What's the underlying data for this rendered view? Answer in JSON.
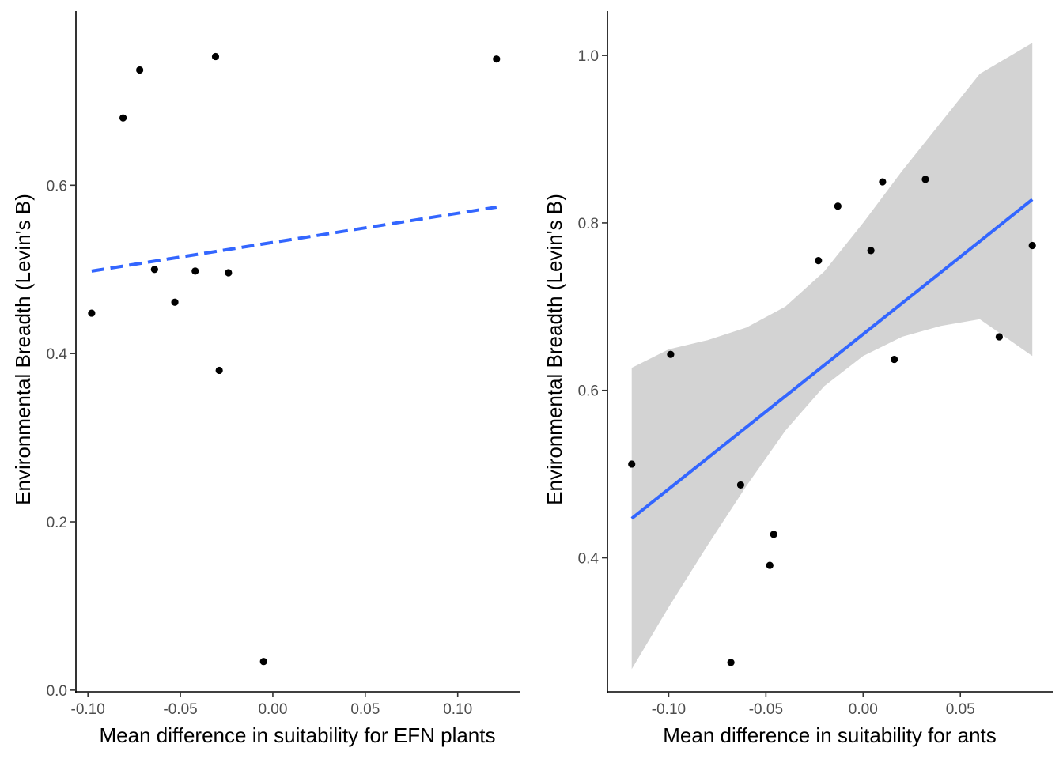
{
  "colors": {
    "point": "#000000",
    "fit_line": "#3366FF",
    "ribbon": "#D3D3D3",
    "axis": "#000000",
    "tick_label": "#4d4d4d"
  },
  "chart_data": [
    {
      "type": "scatter",
      "title": "",
      "xlabel": "Mean difference in suitability for EFN plants",
      "ylabel": "Environmental Breadth (Levin's B)",
      "xlim": [
        -0.1065,
        0.1335
      ],
      "ylim": [
        -0.002,
        0.807
      ],
      "x_ticks": [
        -0.1,
        -0.05,
        0.0,
        0.05,
        0.1
      ],
      "x_tick_labels": [
        "-0.10",
        "-0.05",
        "0.00",
        "0.05",
        "0.10"
      ],
      "y_ticks": [
        0.0,
        0.2,
        0.4,
        0.6
      ],
      "y_tick_labels": [
        "0.0",
        "0.2",
        "0.4",
        "0.6"
      ],
      "points": [
        {
          "x": -0.098,
          "y": 0.448
        },
        {
          "x": -0.081,
          "y": 0.68
        },
        {
          "x": -0.072,
          "y": 0.737
        },
        {
          "x": -0.064,
          "y": 0.5
        },
        {
          "x": -0.053,
          "y": 0.461
        },
        {
          "x": -0.042,
          "y": 0.498
        },
        {
          "x": -0.031,
          "y": 0.753
        },
        {
          "x": -0.029,
          "y": 0.38
        },
        {
          "x": -0.024,
          "y": 0.496
        },
        {
          "x": -0.005,
          "y": 0.034
        },
        {
          "x": 0.121,
          "y": 0.75
        }
      ],
      "fit": {
        "style": "dashed",
        "x": [
          -0.098,
          0.121
        ],
        "y": [
          0.498,
          0.574
        ]
      },
      "grid": false,
      "legend": "none"
    },
    {
      "type": "scatter",
      "title": "",
      "xlabel": "Mean difference in suitability for ants",
      "ylabel": "Environmental Breadth (Levin's B)",
      "xlim": [
        -0.1315,
        0.0975
      ],
      "ylim": [
        0.24,
        1.053
      ],
      "x_ticks": [
        -0.1,
        -0.05,
        0.0,
        0.05
      ],
      "x_tick_labels": [
        "-0.10",
        "-0.05",
        "0.00",
        "0.05"
      ],
      "y_ticks": [
        0.4,
        0.6,
        0.8,
        1.0
      ],
      "y_tick_labels": [
        "0.4",
        "0.6",
        "0.8",
        "1.0"
      ],
      "points": [
        {
          "x": -0.119,
          "y": 0.512
        },
        {
          "x": -0.099,
          "y": 0.643
        },
        {
          "x": -0.068,
          "y": 0.275
        },
        {
          "x": -0.063,
          "y": 0.487
        },
        {
          "x": -0.048,
          "y": 0.391
        },
        {
          "x": -0.046,
          "y": 0.428
        },
        {
          "x": -0.023,
          "y": 0.755
        },
        {
          "x": -0.013,
          "y": 0.82
        },
        {
          "x": 0.004,
          "y": 0.767
        },
        {
          "x": 0.01,
          "y": 0.849
        },
        {
          "x": 0.016,
          "y": 0.637
        },
        {
          "x": 0.032,
          "y": 0.852
        },
        {
          "x": 0.07,
          "y": 0.664
        },
        {
          "x": 0.087,
          "y": 0.773
        }
      ],
      "fit": {
        "style": "solid",
        "x": [
          -0.119,
          0.087
        ],
        "y": [
          0.447,
          0.828
        ]
      },
      "ribbon": {
        "x": [
          -0.119,
          -0.1,
          -0.08,
          -0.06,
          -0.04,
          -0.02,
          0.0,
          0.02,
          0.04,
          0.06,
          0.087
        ],
        "lower": [
          0.267,
          0.341,
          0.415,
          0.486,
          0.552,
          0.605,
          0.641,
          0.664,
          0.677,
          0.685,
          0.641
        ],
        "upper": [
          0.627,
          0.649,
          0.66,
          0.675,
          0.7,
          0.742,
          0.8,
          0.862,
          0.92,
          0.978,
          1.015
        ]
      },
      "grid": false,
      "legend": "none"
    }
  ]
}
